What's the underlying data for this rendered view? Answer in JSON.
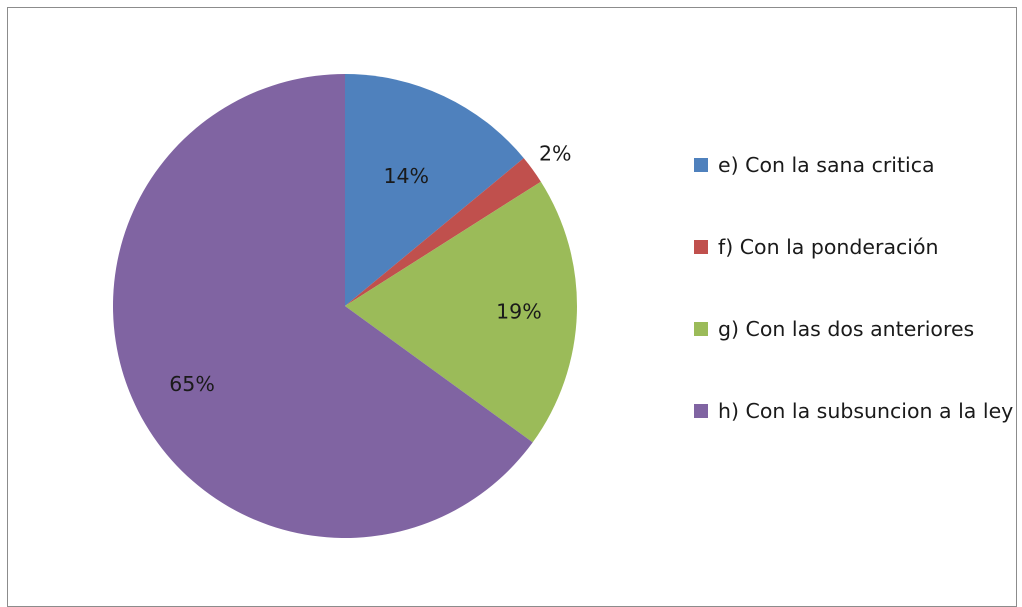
{
  "chart_data": {
    "type": "pie",
    "title": "",
    "legend_position": "right",
    "start_angle": "12 o'clock, clockwise",
    "slices": [
      {
        "label": "e) Con la sana critica",
        "value": 14,
        "display": "14%",
        "color": "#4F81BD"
      },
      {
        "label": "f) Con la ponderación",
        "value": 2,
        "display": "2%",
        "color": "#C0504D"
      },
      {
        "label": "g) Con las dos anteriores",
        "value": 19,
        "display": "19%",
        "color": "#9BBB59"
      },
      {
        "label": "h) Con la subsuncion a la ley",
        "value": 65,
        "display": "65%",
        "color": "#8064A2"
      }
    ]
  }
}
